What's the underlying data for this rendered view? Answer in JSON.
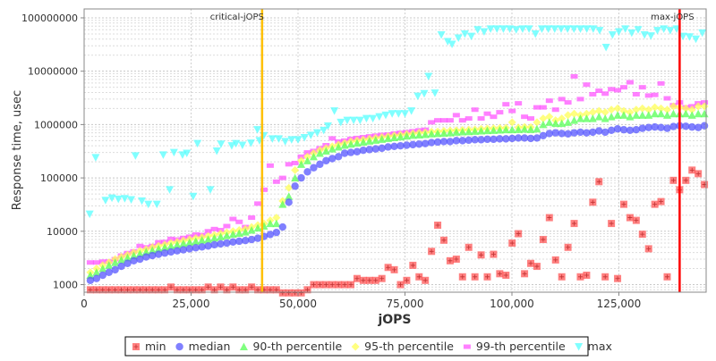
{
  "chart_data": {
    "type": "scatter",
    "title": "",
    "xlabel": "jOPS",
    "ylabel": "Response time, usec",
    "xlim": [
      0,
      145400
    ],
    "ylim": [
      721,
      146900000
    ],
    "yscale": "log",
    "grid": true,
    "legend_position": "bottom",
    "x_ticks": [
      {
        "v": 0,
        "label": "0"
      },
      {
        "v": 25000,
        "label": "25,000"
      },
      {
        "v": 50000,
        "label": "50,000"
      },
      {
        "v": 75000,
        "label": "75,000"
      },
      {
        "v": 100000,
        "label": "100,000"
      },
      {
        "v": 125000,
        "label": "125,000"
      }
    ],
    "y_ticks": [
      {
        "v": 1000,
        "label": "1000"
      },
      {
        "v": 10000,
        "label": "10000"
      },
      {
        "v": 100000,
        "label": "100000"
      },
      {
        "v": 1000000,
        "label": "1000000"
      },
      {
        "v": 10000000,
        "label": "10000000"
      },
      {
        "v": 100000000,
        "label": "100000000"
      }
    ],
    "markers": [
      {
        "label": "critical-jOPS",
        "x": 41600,
        "color": "#ffc000"
      },
      {
        "label": "max-jOPS",
        "x": 139200,
        "color": "#ff0000"
      }
    ],
    "x_step": 1450,
    "series": [
      {
        "name": "min",
        "color": "#ff5555",
        "shape": "square",
        "values": [
          800,
          800,
          800,
          800,
          800,
          800,
          800,
          800,
          800,
          800,
          800,
          800,
          800,
          900,
          800,
          800,
          800,
          800,
          800,
          900,
          800,
          900,
          800,
          900,
          800,
          800,
          900,
          800,
          800,
          800,
          800,
          700,
          700,
          700,
          700,
          800,
          1000,
          1000,
          1000,
          1000,
          1000,
          1000,
          1000,
          1300,
          1200,
          1200,
          1200,
          1300,
          2100,
          1900,
          1000,
          1200,
          2300,
          1400,
          1200,
          4200,
          13000,
          6800,
          2800,
          3000,
          1400,
          5000,
          1400,
          3600,
          1400,
          3700,
          1600,
          1500,
          6000,
          9000,
          1600,
          2500,
          2200,
          7000,
          18000,
          2900,
          1400,
          5000,
          14000,
          1400,
          1500,
          35000,
          85000,
          1400,
          14000,
          1300,
          32000,
          18000,
          16000,
          8800,
          4700,
          32000,
          36000,
          1400,
          90000,
          60000,
          90000,
          140000,
          120000,
          75000
        ]
      },
      {
        "name": "median",
        "color": "#5555ff",
        "shape": "circle",
        "values": [
          1200,
          1300,
          1500,
          1700,
          1900,
          2200,
          2500,
          2800,
          3000,
          3300,
          3500,
          3700,
          3900,
          4100,
          4300,
          4500,
          4700,
          4900,
          5100,
          5300,
          5600,
          5800,
          6000,
          6300,
          6500,
          6700,
          7000,
          7400,
          8000,
          8700,
          9500,
          12000,
          35000,
          70000,
          100000,
          130000,
          155000,
          180000,
          210000,
          230000,
          250000,
          290000,
          300000,
          310000,
          330000,
          340000,
          350000,
          360000,
          380000,
          390000,
          400000,
          410000,
          420000,
          430000,
          440000,
          460000,
          470000,
          480000,
          480000,
          500000,
          500000,
          510000,
          520000,
          520000,
          530000,
          530000,
          540000,
          540000,
          550000,
          560000,
          560000,
          550000,
          560000,
          620000,
          680000,
          700000,
          680000,
          670000,
          700000,
          720000,
          700000,
          720000,
          760000,
          720000,
          780000,
          830000,
          800000,
          780000,
          800000,
          850000,
          880000,
          900000,
          880000,
          850000,
          920000,
          950000,
          930000,
          900000,
          880000,
          950000
        ]
      },
      {
        "name": "90-th percentile",
        "color": "#55ff55",
        "shape": "triangle-up",
        "values": [
          1500,
          1700,
          2000,
          2300,
          2600,
          2900,
          3200,
          3500,
          3800,
          4100,
          4400,
          4700,
          5000,
          5300,
          5600,
          5900,
          6200,
          6500,
          6800,
          7100,
          7500,
          7900,
          8300,
          8800,
          9200,
          9700,
          10500,
          11500,
          12500,
          14000,
          14000,
          32000,
          45000,
          100000,
          180000,
          210000,
          250000,
          290000,
          320000,
          350000,
          380000,
          410000,
          430000,
          450000,
          470000,
          490000,
          510000,
          530000,
          550000,
          570000,
          590000,
          610000,
          630000,
          640000,
          650000,
          670000,
          680000,
          690000,
          700000,
          720000,
          730000,
          740000,
          750000,
          760000,
          770000,
          780000,
          790000,
          800000,
          800000,
          810000,
          820000,
          810000,
          830000,
          1000000,
          1100000,
          1050000,
          1050000,
          1100000,
          1200000,
          1300000,
          1300000,
          1300000,
          1400000,
          1300000,
          1400000,
          1500000,
          1500000,
          1400000,
          1500000,
          1500000,
          1500000,
          1600000,
          1600000,
          1500000,
          1600000,
          1600000,
          1600000,
          1500000,
          1600000,
          1600000
        ]
      },
      {
        "name": "95-th percentile",
        "color": "#ffff55",
        "shape": "diamond",
        "values": [
          1700,
          2000,
          2300,
          2600,
          3000,
          3300,
          3600,
          4000,
          4300,
          4600,
          5000,
          5300,
          5600,
          6000,
          6300,
          6700,
          7000,
          7400,
          7700,
          8100,
          8500,
          9000,
          9500,
          10000,
          10500,
          11000,
          12000,
          13000,
          14000,
          16000,
          18000,
          37000,
          65000,
          140000,
          210000,
          250000,
          290000,
          330000,
          360000,
          390000,
          420000,
          450000,
          480000,
          500000,
          520000,
          540000,
          560000,
          580000,
          600000,
          620000,
          640000,
          660000,
          680000,
          700000,
          710000,
          730000,
          740000,
          760000,
          770000,
          780000,
          790000,
          800000,
          810000,
          830000,
          840000,
          850000,
          860000,
          870000,
          1100000,
          880000,
          900000,
          890000,
          1100000,
          1300000,
          1400000,
          1200000,
          1300000,
          1500000,
          1600000,
          1500000,
          1600000,
          1700000,
          1800000,
          1700000,
          1900000,
          2000000,
          1800000,
          1700000,
          1900000,
          2000000,
          1900000,
          2100000,
          2000000,
          1900000,
          2200000,
          2100000,
          2000000,
          1900000,
          2200000,
          2200000
        ]
      },
      {
        "name": "99-th percentile",
        "color": "#ff55ff",
        "shape": "bar",
        "values": [
          2600,
          2600,
          2700,
          2700,
          3000,
          3500,
          3900,
          4200,
          5300,
          5000,
          5300,
          6200,
          6300,
          7200,
          7000,
          7500,
          7900,
          8700,
          8500,
          10000,
          11000,
          10500,
          12500,
          17000,
          15000,
          12000,
          18000,
          33000,
          60000,
          170000,
          85000,
          100000,
          180000,
          190000,
          250000,
          300000,
          320000,
          360000,
          410000,
          550000,
          480000,
          500000,
          540000,
          560000,
          580000,
          600000,
          620000,
          640000,
          650000,
          680000,
          700000,
          720000,
          750000,
          780000,
          800000,
          1100000,
          1200000,
          1200000,
          1200000,
          1500000,
          1200000,
          1300000,
          1900000,
          1300000,
          1600000,
          1400000,
          1700000,
          2400000,
          1800000,
          2500000,
          1400000,
          1300000,
          2100000,
          2100000,
          2800000,
          1900000,
          3000000,
          2600000,
          8000000,
          3000000,
          5600000,
          3700000,
          4300000,
          3800000,
          4600000,
          4400000,
          5000000,
          6200000,
          3700000,
          5000000,
          3500000,
          3600000,
          5900000,
          3100000,
          2300000,
          2600000,
          2100000,
          2200000,
          2500000,
          2600000
        ]
      },
      {
        "name": "max",
        "color": "#55ffff",
        "shape": "triangle-down",
        "points": [
          [
            1300,
            21000
          ],
          [
            2700,
            240000
          ],
          [
            5000,
            38000
          ],
          [
            6500,
            42000
          ],
          [
            8000,
            40000
          ],
          [
            9500,
            41000
          ],
          [
            11000,
            39000
          ],
          [
            12000,
            260000
          ],
          [
            13500,
            37000
          ],
          [
            15000,
            32000
          ],
          [
            17000,
            32000
          ],
          [
            18500,
            270000
          ],
          [
            20000,
            60000
          ],
          [
            21000,
            300000
          ],
          [
            23000,
            270000
          ],
          [
            24000,
            290000
          ],
          [
            25500,
            45000
          ],
          [
            26500,
            440000
          ],
          [
            29500,
            60000
          ],
          [
            31000,
            320000
          ],
          [
            32000,
            430000
          ],
          [
            34500,
            400000
          ],
          [
            35500,
            440000
          ],
          [
            37000,
            410000
          ],
          [
            39000,
            450000
          ],
          [
            40500,
            800000
          ],
          [
            41000,
            500000
          ],
          [
            42000,
            620000
          ],
          [
            44000,
            540000
          ],
          [
            45500,
            540000
          ],
          [
            47000,
            480000
          ],
          [
            48500,
            520000
          ],
          [
            50000,
            520000
          ],
          [
            51500,
            570000
          ],
          [
            53000,
            630000
          ],
          [
            54500,
            700000
          ],
          [
            56000,
            780000
          ],
          [
            57000,
            940000
          ],
          [
            58500,
            1800000
          ],
          [
            60000,
            1100000
          ],
          [
            61500,
            1200000
          ],
          [
            63000,
            1200000
          ],
          [
            64500,
            1200000
          ],
          [
            66000,
            1300000
          ],
          [
            67500,
            1300000
          ],
          [
            69000,
            1400000
          ],
          [
            70500,
            1500000
          ],
          [
            72000,
            1600000
          ],
          [
            73500,
            1600000
          ],
          [
            75000,
            1600000
          ],
          [
            76500,
            1800000
          ],
          [
            78000,
            3400000
          ],
          [
            79500,
            3800000
          ],
          [
            80500,
            8000000
          ],
          [
            82000,
            3900000
          ],
          [
            83500,
            48000000
          ],
          [
            85000,
            36000000
          ],
          [
            86000,
            32000000
          ],
          [
            87500,
            42000000
          ],
          [
            89000,
            50000000
          ],
          [
            90500,
            45000000
          ],
          [
            92000,
            60000000
          ],
          [
            93500,
            55000000
          ],
          [
            95000,
            62000000
          ],
          [
            96500,
            62000000
          ],
          [
            98000,
            62000000
          ],
          [
            99500,
            62000000
          ],
          [
            101000,
            60000000
          ],
          [
            102500,
            62000000
          ],
          [
            104000,
            62000000
          ],
          [
            105500,
            50000000
          ],
          [
            107000,
            62000000
          ],
          [
            108500,
            62000000
          ],
          [
            110000,
            62000000
          ],
          [
            111500,
            62000000
          ],
          [
            113000,
            62000000
          ],
          [
            114500,
            62000000
          ],
          [
            116000,
            62000000
          ],
          [
            117500,
            62000000
          ],
          [
            119000,
            62000000
          ],
          [
            120500,
            58000000
          ],
          [
            122000,
            28000000
          ],
          [
            123500,
            48000000
          ],
          [
            125000,
            55000000
          ],
          [
            126500,
            62000000
          ],
          [
            128000,
            52000000
          ],
          [
            129500,
            60000000
          ],
          [
            131000,
            48000000
          ],
          [
            132500,
            46000000
          ],
          [
            134000,
            58000000
          ],
          [
            135500,
            62000000
          ],
          [
            137000,
            58000000
          ],
          [
            138500,
            62000000
          ],
          [
            140000,
            45000000
          ],
          [
            141500,
            44000000
          ],
          [
            143000,
            40000000
          ],
          [
            144500,
            52000000
          ]
        ]
      }
    ]
  }
}
